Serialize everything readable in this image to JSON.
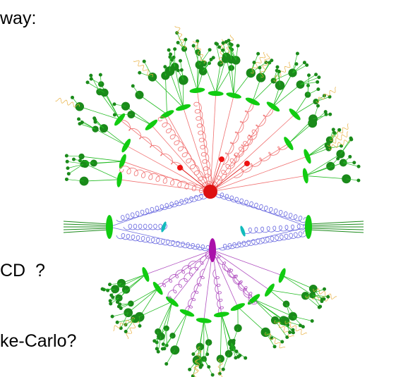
{
  "slide": {
    "lines": [
      "way:",
      "CD  ?",
      "ke-Carlo?"
    ]
  }
}
